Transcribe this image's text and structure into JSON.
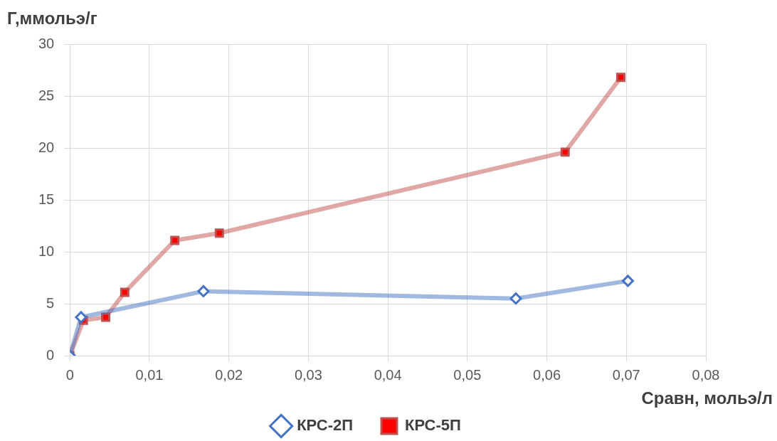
{
  "chart_data": {
    "type": "line",
    "xlabel": "Сравн, мольэ/л",
    "ylabel": "Г,ммольэ/г",
    "xlim": [
      0,
      0.08
    ],
    "xticks": [
      0,
      {
        "value": 0.01,
        "label": "0,01"
      },
      {
        "value": 0.02,
        "label": "0,02"
      },
      {
        "value": 0.03,
        "label": "0,03"
      },
      {
        "value": 0.04,
        "label": "0,04"
      },
      {
        "value": 0.05,
        "label": "0,05"
      },
      {
        "value": 0.06,
        "label": "0,06"
      },
      {
        "value": 0.07,
        "label": "0,07"
      },
      {
        "value": 0.08,
        "label": "0,08"
      }
    ],
    "ylim": [
      0,
      30
    ],
    "yticks": [
      0,
      5,
      10,
      15,
      20,
      25,
      30
    ],
    "grid": true,
    "legend": "bottom",
    "series": [
      {
        "name": "КРС-2П",
        "color": "#4472c4",
        "marker": "diamond",
        "x": [
          0,
          0.0014,
          0.0168,
          0.0561,
          0.0702
        ],
        "values": [
          0,
          3.7,
          6.2,
          5.5,
          7.2
        ]
      },
      {
        "name": "КРС-5П",
        "color": "#c0504d",
        "marker": "square",
        "x": [
          0,
          0.0017,
          0.0045,
          0.0069,
          0.0132,
          0.0188,
          0.0623,
          0.0693
        ],
        "values": [
          0,
          3.4,
          3.7,
          6.1,
          11.1,
          11.8,
          19.6,
          26.8
        ]
      }
    ]
  }
}
